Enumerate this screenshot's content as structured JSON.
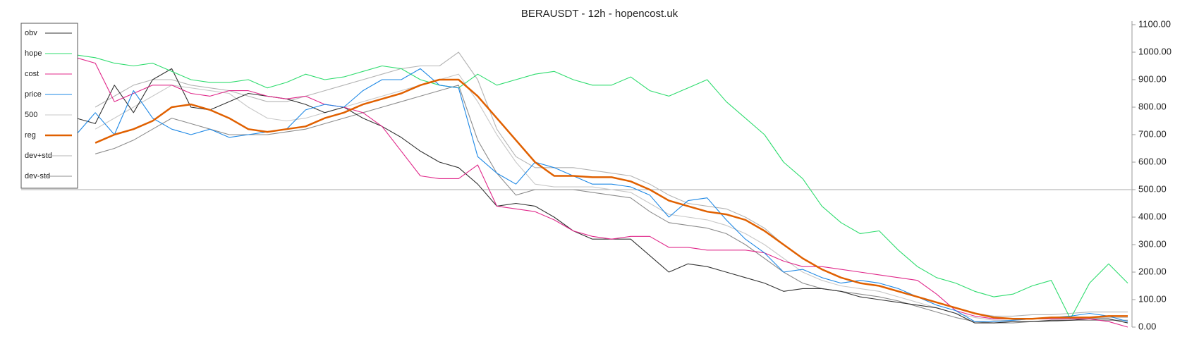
{
  "chart_data": {
    "type": "line",
    "title": "BERAUSDT - 12h - hopencost.uk",
    "ylim": [
      0,
      1100
    ],
    "yticks": [
      {
        "value": 0,
        "label": "0.00"
      },
      {
        "value": 100,
        "label": "100.00"
      },
      {
        "value": 200,
        "label": "200.00"
      },
      {
        "value": 300,
        "label": "300.00"
      },
      {
        "value": 400,
        "label": "400.00"
      },
      {
        "value": 500,
        "label": "500.00"
      },
      {
        "value": 600,
        "label": "600.00"
      },
      {
        "value": 700,
        "label": "700.00"
      },
      {
        "value": 800,
        "label": "800.00"
      },
      {
        "value": 900,
        "label": "900.00"
      },
      {
        "value": 1000,
        "label": "1000.00"
      },
      {
        "value": 1100,
        "label": "1100.00"
      }
    ],
    "y_axis_side": "right",
    "reference_line": 500,
    "legend": "top-left",
    "series": [
      {
        "name": "obv",
        "color": "#333333",
        "values": [
          760,
          740,
          880,
          780,
          900,
          940,
          800,
          790,
          820,
          850,
          840,
          830,
          810,
          780,
          800,
          760,
          730,
          690,
          640,
          600,
          580,
          520,
          440,
          450,
          440,
          400,
          350,
          320,
          320,
          320,
          260,
          200,
          230,
          220,
          200,
          180,
          160,
          130,
          140,
          140,
          130,
          110,
          100,
          90,
          80,
          70,
          50,
          15,
          15,
          20,
          20,
          25,
          25,
          30,
          30,
          15
        ]
      },
      {
        "name": "hope",
        "color": "#2edc6e",
        "values": [
          990,
          980,
          960,
          950,
          960,
          930,
          900,
          890,
          890,
          900,
          870,
          890,
          920,
          900,
          910,
          930,
          950,
          940,
          900,
          880,
          870,
          920,
          880,
          900,
          920,
          930,
          900,
          880,
          880,
          910,
          860,
          840,
          870,
          900,
          820,
          760,
          700,
          600,
          540,
          440,
          380,
          340,
          350,
          280,
          220,
          180,
          160,
          130,
          110,
          120,
          150,
          170,
          30,
          160,
          230,
          160
        ]
      },
      {
        "name": "cost",
        "color": "#e0288a",
        "values": [
          980,
          960,
          820,
          850,
          880,
          880,
          850,
          840,
          860,
          860,
          840,
          830,
          840,
          810,
          800,
          780,
          730,
          640,
          550,
          540,
          540,
          590,
          440,
          430,
          420,
          390,
          350,
          330,
          320,
          330,
          330,
          290,
          290,
          280,
          280,
          280,
          270,
          240,
          220,
          220,
          210,
          200,
          190,
          180,
          170,
          120,
          60,
          40,
          30,
          30,
          30,
          30,
          30,
          30,
          20,
          0
        ]
      },
      {
        "name": "price",
        "color": "#1e88e5",
        "values": [
          700,
          780,
          700,
          860,
          760,
          720,
          700,
          720,
          690,
          700,
          710,
          720,
          790,
          810,
          800,
          860,
          900,
          900,
          940,
          880,
          870,
          620,
          560,
          520,
          600,
          580,
          550,
          520,
          520,
          510,
          480,
          400,
          460,
          470,
          390,
          320,
          270,
          200,
          210,
          180,
          160,
          170,
          160,
          140,
          110,
          80,
          60,
          20,
          20,
          25,
          30,
          35,
          40,
          50,
          40,
          20
        ]
      },
      {
        "name": "500",
        "color": "#c8c8c8",
        "values": [
          null,
          720,
          760,
          800,
          840,
          880,
          870,
          860,
          850,
          800,
          760,
          750,
          760,
          780,
          800,
          820,
          840,
          860,
          880,
          900,
          920,
          820,
          700,
          600,
          520,
          510,
          510,
          510,
          500,
          490,
          450,
          410,
          400,
          390,
          370,
          340,
          300,
          250,
          200,
          170,
          150,
          140,
          130,
          110,
          90,
          70,
          50,
          35,
          25,
          25,
          30,
          30,
          30,
          35,
          35,
          35
        ]
      },
      {
        "name": "reg",
        "color": "#e06000",
        "width": 2.5,
        "values": [
          null,
          670,
          700,
          720,
          750,
          800,
          810,
          790,
          760,
          720,
          710,
          720,
          730,
          760,
          780,
          810,
          830,
          850,
          880,
          900,
          900,
          840,
          760,
          680,
          600,
          550,
          550,
          545,
          545,
          530,
          500,
          460,
          440,
          420,
          410,
          390,
          350,
          300,
          250,
          210,
          180,
          160,
          150,
          130,
          110,
          90,
          70,
          50,
          35,
          30,
          30,
          35,
          35,
          35,
          40,
          40
        ]
      },
      {
        "name": "dev+std",
        "color": "#b4b4b4",
        "values": [
          null,
          800,
          840,
          880,
          900,
          900,
          880,
          870,
          860,
          840,
          820,
          820,
          840,
          860,
          880,
          900,
          920,
          940,
          950,
          950,
          1000,
          900,
          720,
          620,
          580,
          580,
          580,
          570,
          560,
          550,
          520,
          480,
          450,
          440,
          430,
          400,
          360,
          300,
          250,
          210,
          180,
          160,
          150,
          130,
          110,
          90,
          70,
          50,
          40,
          40,
          45,
          45,
          50,
          55,
          55,
          55
        ]
      },
      {
        "name": "dev-std",
        "color": "#8c8c8c",
        "values": [
          null,
          630,
          650,
          680,
          720,
          760,
          740,
          720,
          700,
          700,
          700,
          710,
          720,
          740,
          760,
          780,
          800,
          820,
          840,
          860,
          880,
          680,
          560,
          480,
          500,
          500,
          500,
          490,
          480,
          470,
          420,
          380,
          370,
          360,
          340,
          300,
          250,
          200,
          160,
          140,
          130,
          120,
          110,
          95,
          75,
          55,
          35,
          20,
          15,
          15,
          20,
          20,
          25,
          25,
          25,
          25
        ]
      }
    ]
  }
}
